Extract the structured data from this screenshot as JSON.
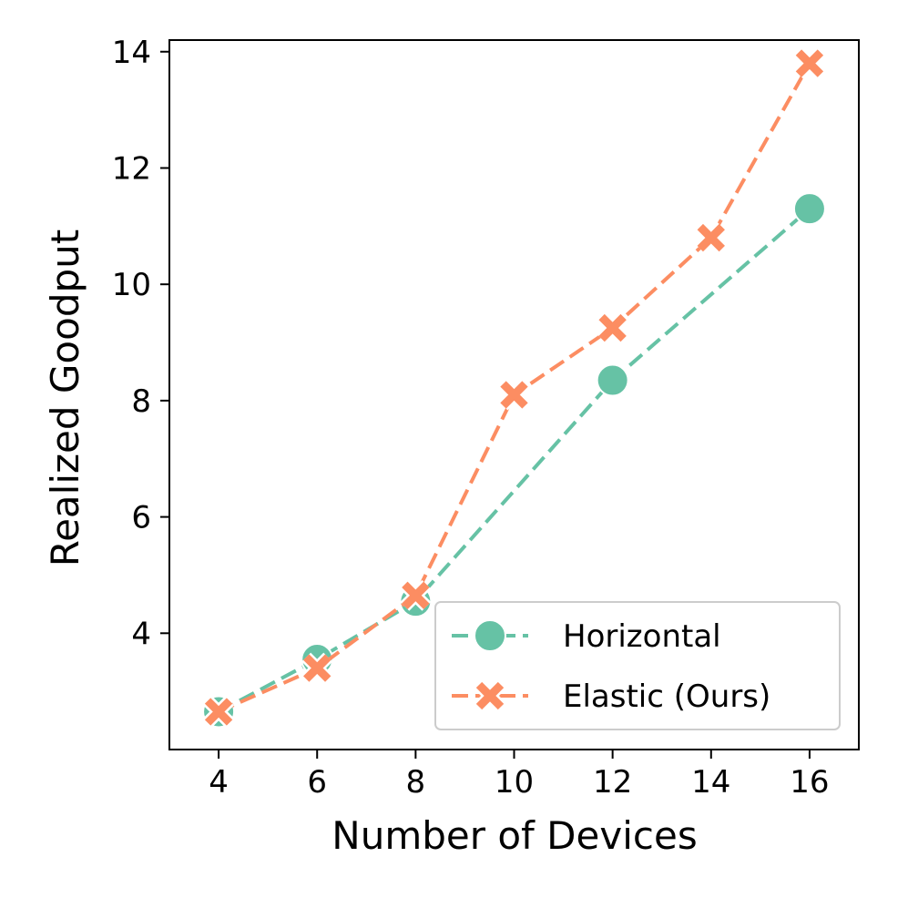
{
  "chart_data": {
    "type": "line",
    "xlabel": "Number of Devices",
    "ylabel": "Realized Goodput",
    "xlim": [
      3,
      17
    ],
    "ylim": [
      2.0,
      14.2
    ],
    "xticks": [
      4,
      6,
      8,
      10,
      12,
      14,
      16
    ],
    "yticks": [
      4,
      6,
      8,
      10,
      12,
      14
    ],
    "grid": false,
    "legend_position": "lower-right",
    "series": [
      {
        "name": "Horizontal",
        "marker": "circle",
        "color": "#66c2a5",
        "linestyle": "dashed",
        "x": [
          4,
          6,
          8,
          12,
          16
        ],
        "y": [
          2.65,
          3.55,
          4.55,
          8.35,
          11.3
        ]
      },
      {
        "name": "Elastic (Ours)",
        "marker": "x",
        "color": "#fc8d62",
        "linestyle": "dashed",
        "x": [
          4,
          6,
          8,
          10,
          12,
          14,
          16
        ],
        "y": [
          2.65,
          3.4,
          4.65,
          8.1,
          9.25,
          10.8,
          13.8
        ]
      }
    ]
  }
}
